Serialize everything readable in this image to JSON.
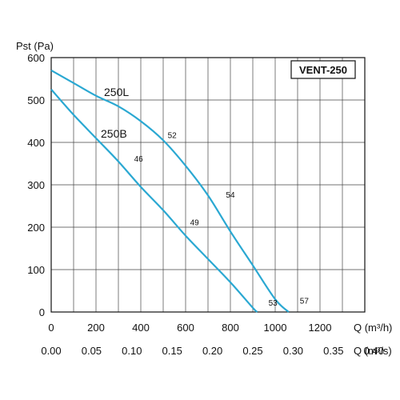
{
  "chart_data": {
    "type": "line",
    "title": "",
    "badge": "VENT-250",
    "ylabel": "Pst (Pa)",
    "xlabel": "Q (m³/h)",
    "x2label": "Q (m³/s)",
    "xlim": [
      0,
      1400
    ],
    "ylim": [
      0,
      600
    ],
    "x_ticks": [
      0,
      200,
      400,
      600,
      800,
      1000,
      1200
    ],
    "x2_ticks": [
      "0.00",
      "0.05",
      "0.10",
      "0.15",
      "0.20",
      "0.25",
      "0.30",
      "0.35",
      "0.40"
    ],
    "y_ticks": [
      0,
      100,
      200,
      300,
      400,
      500,
      600
    ],
    "grid": true,
    "line_color": "#2aa8d2",
    "series": [
      {
        "name": "250L",
        "points": [
          [
            0,
            570
          ],
          [
            100,
            540
          ],
          [
            200,
            510
          ],
          [
            300,
            485
          ],
          [
            400,
            450
          ],
          [
            500,
            405
          ],
          [
            600,
            345
          ],
          [
            700,
            275
          ],
          [
            800,
            190
          ],
          [
            900,
            110
          ],
          [
            1000,
            30
          ],
          [
            1060,
            0
          ]
        ],
        "annotations": [
          {
            "x": 520,
            "y": 410,
            "text": "52"
          },
          {
            "x": 780,
            "y": 270,
            "text": "54"
          },
          {
            "x": 1110,
            "y": 20,
            "text": "57"
          }
        ]
      },
      {
        "name": "250B",
        "points": [
          [
            0,
            525
          ],
          [
            100,
            465
          ],
          [
            200,
            410
          ],
          [
            300,
            355
          ],
          [
            400,
            295
          ],
          [
            500,
            240
          ],
          [
            600,
            180
          ],
          [
            700,
            125
          ],
          [
            800,
            70
          ],
          [
            900,
            10
          ],
          [
            920,
            0
          ]
        ],
        "annotations": [
          {
            "x": 370,
            "y": 355,
            "text": "46"
          },
          {
            "x": 620,
            "y": 205,
            "text": "49"
          },
          {
            "x": 970,
            "y": 15,
            "text": "53"
          }
        ]
      }
    ]
  }
}
